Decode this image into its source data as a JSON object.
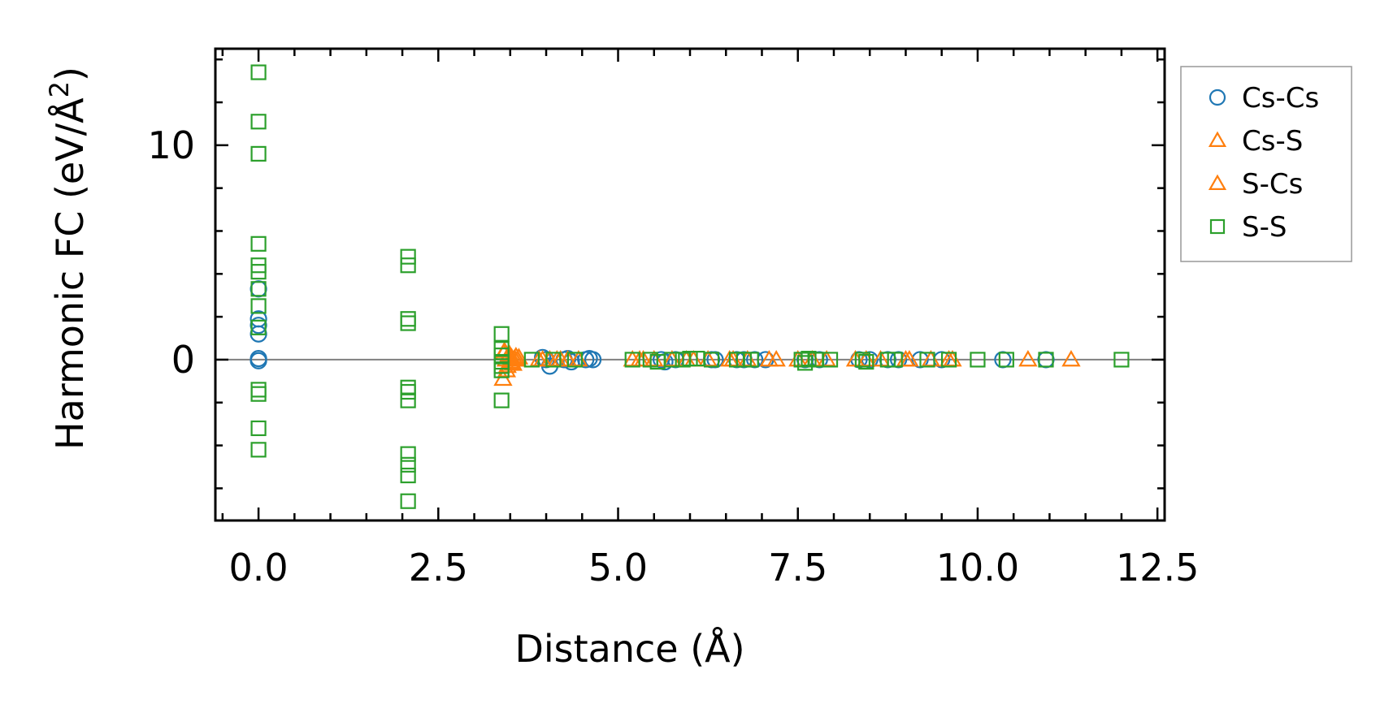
{
  "chart_data": {
    "type": "scatter",
    "xlabel": "Distance (Å)",
    "ylabel_main": "Harmonic FC (eV/Å",
    "ylabel_sup": "2",
    "ylabel_close": ")",
    "xlim": [
      -0.6,
      12.6
    ],
    "ylim": [
      -7.5,
      14.5
    ],
    "x_ticks": [
      0.0,
      2.5,
      5.0,
      7.5,
      10.0,
      12.5
    ],
    "x_tick_labels": [
      "0.0",
      "2.5",
      "5.0",
      "7.5",
      "10.0",
      "12.5"
    ],
    "y_ticks": [
      0,
      10
    ],
    "y_tick_labels": [
      "0",
      "10"
    ],
    "zero_line": true,
    "legend_position": "outside-right-top",
    "colors": {
      "Cs-Cs": "#1f77b4",
      "Cs-S": "#ff7f0e",
      "S-Cs": "#ff7f0e",
      "S-S": "#2ca02c"
    },
    "series": [
      {
        "name": "Cs-Cs",
        "marker": "circle",
        "color": "#1f77b4",
        "points": [
          [
            0.0,
            3.3
          ],
          [
            0.0,
            1.9
          ],
          [
            0.0,
            1.6
          ],
          [
            0.0,
            1.2
          ],
          [
            0.0,
            0.05
          ],
          [
            0.0,
            -0.05
          ],
          [
            3.95,
            0.1
          ],
          [
            4.0,
            0.0
          ],
          [
            4.05,
            -0.3
          ],
          [
            4.25,
            0.0
          ],
          [
            4.3,
            0.05
          ],
          [
            4.35,
            -0.1
          ],
          [
            4.55,
            0.0
          ],
          [
            4.6,
            0.05
          ],
          [
            4.65,
            0.0
          ],
          [
            5.6,
            0.0
          ],
          [
            5.65,
            -0.1
          ],
          [
            5.8,
            0.0
          ],
          [
            6.3,
            0.0
          ],
          [
            6.35,
            0.0
          ],
          [
            6.65,
            0.0
          ],
          [
            6.75,
            0.0
          ],
          [
            6.9,
            0.0
          ],
          [
            7.05,
            0.0
          ],
          [
            7.6,
            0.0
          ],
          [
            7.8,
            0.0
          ],
          [
            8.35,
            0.0
          ],
          [
            8.5,
            0.0
          ],
          [
            8.75,
            0.0
          ],
          [
            8.9,
            0.0
          ],
          [
            9.2,
            0.0
          ],
          [
            9.5,
            0.0
          ],
          [
            10.35,
            0.0
          ],
          [
            10.95,
            0.0
          ]
        ]
      },
      {
        "name": "Cs-S",
        "marker": "triangle",
        "color": "#ff7f0e",
        "points": [
          [
            3.4,
            -0.9
          ],
          [
            3.42,
            0.4
          ],
          [
            3.44,
            0.0
          ],
          [
            3.46,
            -0.3
          ],
          [
            3.48,
            0.2
          ],
          [
            3.5,
            -0.1
          ],
          [
            3.52,
            0.1
          ],
          [
            3.54,
            -0.2
          ],
          [
            3.56,
            0.05
          ],
          [
            3.58,
            0.15
          ],
          [
            3.6,
            0.0
          ],
          [
            3.62,
            0.1
          ],
          [
            3.9,
            0.0
          ],
          [
            4.05,
            0.0
          ],
          [
            4.15,
            0.0
          ],
          [
            4.3,
            0.0
          ],
          [
            4.45,
            0.0
          ],
          [
            5.2,
            0.0
          ],
          [
            5.35,
            0.0
          ],
          [
            5.5,
            0.0
          ],
          [
            5.75,
            0.0
          ],
          [
            6.05,
            0.0
          ],
          [
            6.25,
            0.0
          ],
          [
            6.55,
            0.0
          ],
          [
            6.8,
            0.0
          ],
          [
            7.2,
            0.0
          ],
          [
            7.5,
            0.0
          ],
          [
            7.9,
            0.0
          ],
          [
            8.3,
            0.0
          ],
          [
            8.65,
            0.0
          ],
          [
            9.05,
            0.0
          ],
          [
            9.6,
            0.0
          ],
          [
            10.7,
            0.0
          ],
          [
            11.3,
            0.0
          ]
        ]
      },
      {
        "name": "S-Cs",
        "marker": "triangle",
        "color": "#ff7f0e",
        "points": [
          [
            3.41,
            0.3
          ],
          [
            3.45,
            -0.5
          ],
          [
            3.49,
            0.25
          ],
          [
            3.53,
            -0.15
          ],
          [
            3.57,
            0.0
          ],
          [
            3.95,
            0.0
          ],
          [
            4.2,
            0.0
          ],
          [
            5.3,
            0.0
          ],
          [
            5.95,
            0.0
          ],
          [
            6.6,
            0.0
          ],
          [
            7.1,
            0.0
          ],
          [
            7.7,
            0.0
          ],
          [
            8.45,
            0.0
          ],
          [
            9.0,
            0.0
          ],
          [
            9.35,
            0.0
          ],
          [
            9.65,
            0.0
          ]
        ]
      },
      {
        "name": "S-S",
        "marker": "square",
        "color": "#2ca02c",
        "points": [
          [
            0.0,
            13.4
          ],
          [
            0.0,
            11.1
          ],
          [
            0.0,
            9.6
          ],
          [
            0.0,
            5.4
          ],
          [
            0.0,
            4.4
          ],
          [
            0.0,
            4.1
          ],
          [
            0.0,
            3.3
          ],
          [
            0.0,
            2.5
          ],
          [
            0.0,
            1.5
          ],
          [
            0.0,
            -1.4
          ],
          [
            0.0,
            -1.6
          ],
          [
            0.0,
            -3.2
          ],
          [
            0.0,
            -4.2
          ],
          [
            2.08,
            4.8
          ],
          [
            2.08,
            4.4
          ],
          [
            2.08,
            1.9
          ],
          [
            2.08,
            1.7
          ],
          [
            2.08,
            -1.3
          ],
          [
            2.08,
            -1.5
          ],
          [
            2.08,
            -1.9
          ],
          [
            2.08,
            -4.4
          ],
          [
            2.08,
            -4.9
          ],
          [
            2.08,
            -5.4
          ],
          [
            2.08,
            -6.6
          ],
          [
            3.38,
            1.2
          ],
          [
            3.38,
            0.5
          ],
          [
            3.38,
            0.2
          ],
          [
            3.38,
            -0.1
          ],
          [
            3.38,
            -0.3
          ],
          [
            3.38,
            -0.5
          ],
          [
            3.38,
            -1.9
          ],
          [
            3.8,
            0.0
          ],
          [
            4.1,
            0.0
          ],
          [
            4.4,
            0.0
          ],
          [
            5.2,
            0.0
          ],
          [
            5.45,
            0.0
          ],
          [
            5.55,
            -0.1
          ],
          [
            5.75,
            0.0
          ],
          [
            5.9,
            0.0
          ],
          [
            6.0,
            0.05
          ],
          [
            6.1,
            0.05
          ],
          [
            6.3,
            0.0
          ],
          [
            6.65,
            0.0
          ],
          [
            6.75,
            0.0
          ],
          [
            6.85,
            0.0
          ],
          [
            7.55,
            0.0
          ],
          [
            7.6,
            -0.15
          ],
          [
            7.65,
            0.05
          ],
          [
            7.75,
            0.0
          ],
          [
            7.95,
            0.0
          ],
          [
            8.4,
            0.0
          ],
          [
            8.45,
            -0.1
          ],
          [
            8.75,
            0.0
          ],
          [
            8.85,
            0.0
          ],
          [
            9.3,
            0.0
          ],
          [
            9.6,
            0.0
          ],
          [
            10.0,
            0.0
          ],
          [
            10.4,
            0.0
          ],
          [
            10.95,
            0.0
          ],
          [
            12.0,
            0.0
          ]
        ]
      }
    ],
    "legend": [
      {
        "label": "Cs-Cs",
        "marker": "circle",
        "color": "#1f77b4"
      },
      {
        "label": "Cs-S",
        "marker": "triangle",
        "color": "#ff7f0e"
      },
      {
        "label": "S-Cs",
        "marker": "triangle",
        "color": "#ff7f0e"
      },
      {
        "label": "S-S",
        "marker": "square",
        "color": "#2ca02c"
      }
    ]
  }
}
